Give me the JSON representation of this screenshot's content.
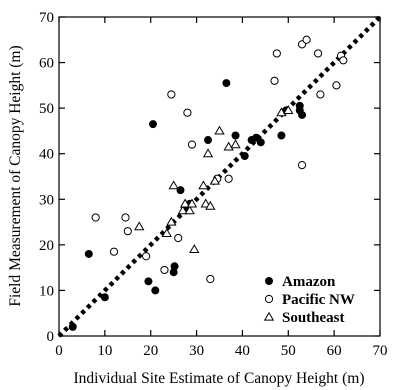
{
  "chart_data": {
    "type": "scatter",
    "xlabel": "Individual Site Estimate of Canopy Height (m)",
    "ylabel": "Field Measurement of Canopy Height (m)",
    "xlim": [
      0,
      70
    ],
    "ylim": [
      0,
      70
    ],
    "x_ticks": [
      "0",
      "10",
      "20",
      "30",
      "40",
      "50",
      "60",
      "70"
    ],
    "y_ticks": [
      "0",
      "10",
      "20",
      "30",
      "40",
      "50",
      "60",
      "70"
    ],
    "grid": false,
    "legend_position": "bottom-right",
    "reference_line": {
      "style": "dotted",
      "from": [
        0,
        0
      ],
      "to": [
        70,
        70
      ]
    },
    "series": [
      {
        "name": "Amazon",
        "marker": "filled-circle",
        "points": [
          [
            3,
            2
          ],
          [
            6.5,
            18
          ],
          [
            10,
            8.5
          ],
          [
            19.5,
            12
          ],
          [
            20.5,
            46.5
          ],
          [
            21,
            10
          ],
          [
            25,
            14
          ],
          [
            25.2,
            15.3
          ],
          [
            26.5,
            32
          ],
          [
            27.5,
            28
          ],
          [
            28.5,
            29
          ],
          [
            32.5,
            43
          ],
          [
            36.5,
            55.5
          ],
          [
            38.5,
            44
          ],
          [
            40.5,
            39.5
          ],
          [
            42,
            43
          ],
          [
            43,
            43.5
          ],
          [
            44,
            42.5
          ],
          [
            48.5,
            44
          ],
          [
            49.5,
            49.5
          ],
          [
            52.5,
            49.5
          ],
          [
            52.5,
            50.5
          ],
          [
            53,
            48.5
          ]
        ]
      },
      {
        "name": "Pacific NW",
        "marker": "open-circle",
        "points": [
          [
            8,
            26
          ],
          [
            12,
            18.5
          ],
          [
            14.5,
            26
          ],
          [
            15,
            23
          ],
          [
            19,
            17.5
          ],
          [
            23,
            14.5
          ],
          [
            24.5,
            53
          ],
          [
            26,
            21.5
          ],
          [
            28,
            49
          ],
          [
            29,
            42
          ],
          [
            33,
            12.5
          ],
          [
            34.5,
            34.5
          ],
          [
            37,
            34.5
          ],
          [
            47,
            56
          ],
          [
            47.5,
            62
          ],
          [
            53,
            37.5
          ],
          [
            53,
            64
          ],
          [
            54,
            65
          ],
          [
            56.5,
            62
          ],
          [
            57,
            53
          ],
          [
            60.5,
            55
          ],
          [
            61.5,
            61.5
          ],
          [
            62,
            60.5
          ]
        ]
      },
      {
        "name": "Southeast",
        "marker": "open-triangle",
        "points": [
          [
            17.5,
            24
          ],
          [
            23.5,
            22.5
          ],
          [
            24.5,
            25
          ],
          [
            25,
            33
          ],
          [
            27,
            27.5
          ],
          [
            27.5,
            29
          ],
          [
            28.5,
            27.5
          ],
          [
            29,
            29
          ],
          [
            29.5,
            19
          ],
          [
            31.5,
            33
          ],
          [
            32,
            29
          ],
          [
            32.5,
            40
          ],
          [
            33,
            28.5
          ],
          [
            34,
            34
          ],
          [
            35,
            45
          ],
          [
            37,
            41.5
          ],
          [
            38.5,
            42
          ],
          [
            48.5,
            49
          ],
          [
            50,
            49.5
          ]
        ]
      }
    ]
  }
}
